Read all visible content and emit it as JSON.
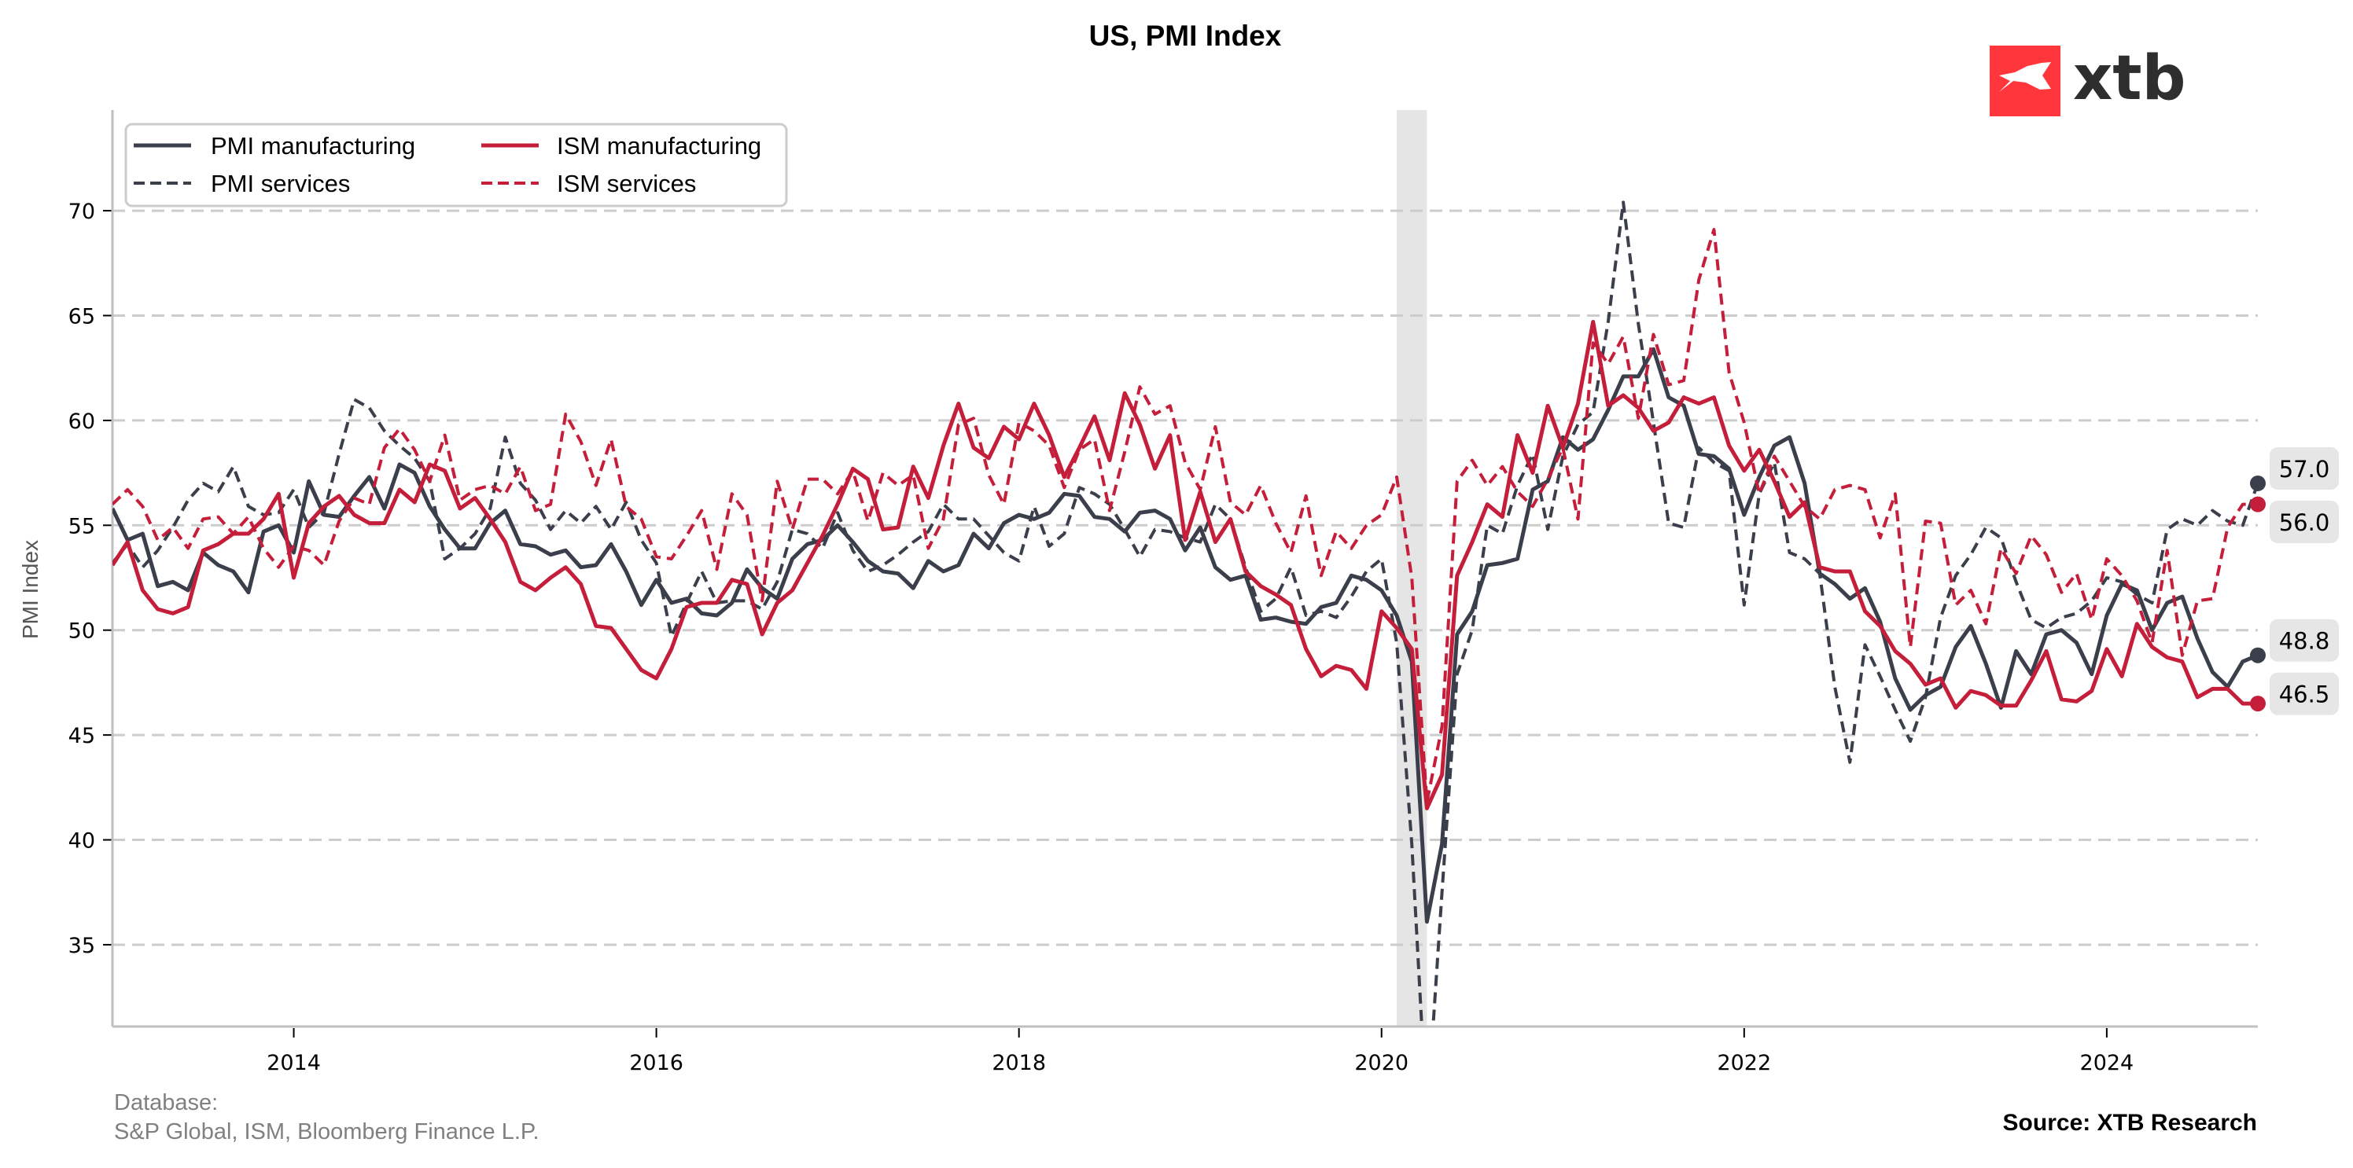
{
  "chart_data": {
    "type": "line",
    "title": "US, PMI Index",
    "xlabel": "",
    "ylabel": "PMI Index",
    "ylim": [
      31.1,
      74.8
    ],
    "xlim": [
      "2013-01",
      "2024-11"
    ],
    "yticks": [
      35,
      40,
      45,
      50,
      55,
      60,
      65,
      70
    ],
    "xticks": [
      "2014",
      "2016",
      "2018",
      "2020",
      "2022",
      "2024"
    ],
    "grid": "horizontal dashed",
    "legend_position": "top-left",
    "start_month": "2013-01",
    "recession_shading": {
      "from": "2020-02",
      "to": "2020-04"
    },
    "series": [
      {
        "name": "PMI manufacturing",
        "color": "#3a3f4b",
        "style": "solid",
        "end_label": "48.8",
        "values": [
          55.8,
          54.3,
          54.6,
          52.1,
          52.3,
          51.9,
          53.7,
          53.1,
          52.8,
          51.8,
          54.7,
          55.0,
          53.7,
          57.1,
          55.5,
          55.4,
          56.4,
          57.3,
          55.8,
          57.9,
          57.5,
          55.9,
          54.8,
          53.9,
          53.9,
          55.1,
          55.7,
          54.1,
          54.0,
          53.6,
          53.8,
          53.0,
          53.1,
          54.1,
          52.8,
          51.2,
          52.4,
          51.3,
          51.5,
          50.8,
          50.7,
          51.3,
          52.9,
          52.0,
          51.5,
          53.4,
          54.1,
          54.3,
          55.0,
          54.2,
          53.3,
          52.8,
          52.7,
          52.0,
          53.3,
          52.8,
          53.1,
          54.6,
          53.9,
          55.1,
          55.5,
          55.3,
          55.6,
          56.5,
          56.4,
          55.4,
          55.3,
          54.7,
          55.6,
          55.7,
          55.3,
          53.8,
          54.9,
          53.0,
          52.4,
          52.6,
          50.5,
          50.6,
          50.4,
          50.3,
          51.1,
          51.3,
          52.6,
          52.4,
          51.9,
          50.7,
          48.5,
          36.1,
          39.8,
          49.8,
          50.9,
          53.1,
          53.2,
          53.4,
          56.7,
          57.1,
          59.2,
          58.6,
          59.1,
          60.5,
          62.1,
          62.1,
          63.4,
          61.1,
          60.7,
          58.4,
          58.3,
          57.7,
          55.5,
          57.3,
          58.8,
          59.2,
          57.0,
          52.7,
          52.2,
          51.5,
          52.0,
          50.4,
          47.7,
          46.2,
          46.9,
          47.3,
          49.2,
          50.2,
          48.4,
          46.3,
          49.0,
          47.9,
          49.8,
          50.0,
          49.4,
          47.9,
          50.7,
          52.2,
          51.9,
          50.0,
          51.3,
          51.6,
          49.6,
          48.0,
          47.3,
          48.5,
          48.8
        ]
      },
      {
        "name": "PMI services",
        "color": "#3a3f4b",
        "style": "dashed",
        "end_label": "57.0",
        "values": [
          53.2,
          54.1,
          53.0,
          53.8,
          54.9,
          56.2,
          57.0,
          56.6,
          57.8,
          55.9,
          55.5,
          55.6,
          56.7,
          54.9,
          55.6,
          58.4,
          61.0,
          60.6,
          59.5,
          58.8,
          58.2,
          57.1,
          53.4,
          53.9,
          54.6,
          55.8,
          59.2,
          57.0,
          56.2,
          54.8,
          55.7,
          55.1,
          55.9,
          54.8,
          56.1,
          54.3,
          53.2,
          49.7,
          51.3,
          52.8,
          51.3,
          51.4,
          51.4,
          51.0,
          52.3,
          54.8,
          54.6,
          53.9,
          55.6,
          53.8,
          52.8,
          53.1,
          53.6,
          54.2,
          54.7,
          56.0,
          55.3,
          55.3,
          54.5,
          53.7,
          53.3,
          55.9,
          54.0,
          54.6,
          56.8,
          56.5,
          56.0,
          54.8,
          53.5,
          54.8,
          54.7,
          54.4,
          54.2,
          56.0,
          55.3,
          53.0,
          50.9,
          51.5,
          53.0,
          50.7,
          50.9,
          50.6,
          51.6,
          52.8,
          53.4,
          49.4,
          39.8,
          26.7,
          37.5,
          47.9,
          50.0,
          55.0,
          54.6,
          56.9,
          58.4,
          54.8,
          58.3,
          59.8,
          60.4,
          64.7,
          70.4,
          64.6,
          59.9,
          55.1,
          54.9,
          58.7,
          58.0,
          57.6,
          51.2,
          56.5,
          58.0,
          53.7,
          53.4,
          52.7,
          47.3,
          43.7,
          49.3,
          47.8,
          46.2,
          44.7,
          46.8,
          50.6,
          52.6,
          53.6,
          54.9,
          54.4,
          52.3,
          50.5,
          50.1,
          50.6,
          50.8,
          51.4,
          52.5,
          52.3,
          51.7,
          51.3,
          54.8,
          55.3,
          55.0,
          55.7,
          55.2,
          55.0,
          57.0
        ]
      },
      {
        "name": "ISM manufacturing",
        "color": "#c41e3a",
        "style": "solid",
        "end_label": "46.5",
        "values": [
          53.1,
          54.2,
          51.9,
          51.0,
          50.8,
          51.1,
          53.8,
          54.1,
          54.6,
          54.6,
          55.3,
          56.5,
          52.5,
          55.1,
          55.9,
          56.4,
          55.5,
          55.1,
          55.1,
          56.7,
          56.1,
          57.9,
          57.6,
          55.8,
          56.3,
          55.3,
          54.2,
          52.3,
          51.9,
          52.5,
          53.0,
          52.2,
          50.2,
          50.1,
          49.1,
          48.1,
          47.7,
          49.1,
          51.1,
          51.3,
          51.3,
          52.4,
          52.2,
          49.8,
          51.3,
          51.9,
          53.2,
          54.5,
          56.0,
          57.7,
          57.2,
          54.8,
          54.9,
          57.8,
          56.3,
          58.8,
          60.8,
          58.7,
          58.2,
          59.7,
          59.1,
          60.8,
          59.3,
          57.3,
          58.7,
          60.2,
          58.1,
          61.3,
          59.8,
          57.7,
          59.3,
          54.3,
          56.6,
          54.2,
          55.3,
          52.8,
          52.1,
          51.7,
          51.2,
          49.1,
          47.8,
          48.3,
          48.1,
          47.2,
          50.9,
          50.1,
          49.1,
          41.5,
          43.1,
          52.6,
          54.2,
          56.0,
          55.4,
          59.3,
          57.5,
          60.7,
          58.7,
          60.8,
          64.7,
          60.7,
          61.2,
          60.6,
          59.5,
          59.9,
          61.1,
          60.8,
          61.1,
          58.8,
          57.6,
          58.6,
          57.1,
          55.4,
          56.1,
          53.0,
          52.8,
          52.8,
          50.9,
          50.2,
          49.0,
          48.4,
          47.4,
          47.7,
          46.3,
          47.1,
          46.9,
          46.4,
          46.4,
          47.6,
          49.0,
          46.7,
          46.6,
          47.1,
          49.1,
          47.8,
          50.3,
          49.2,
          48.7,
          48.5,
          46.8,
          47.2,
          47.2,
          46.5,
          46.5
        ]
      },
      {
        "name": "ISM services",
        "color": "#c41e3a",
        "style": "dashed",
        "end_label": "56.0",
        "values": [
          56.0,
          56.7,
          55.9,
          54.3,
          54.9,
          53.9,
          55.3,
          55.4,
          54.6,
          55.4,
          53.9,
          53.0,
          54.0,
          53.8,
          53.1,
          55.2,
          56.3,
          56.0,
          58.7,
          59.6,
          58.6,
          57.1,
          59.3,
          56.2,
          56.7,
          56.9,
          56.5,
          57.8,
          55.7,
          56.0,
          60.3,
          59.0,
          56.9,
          59.1,
          55.9,
          55.3,
          53.5,
          53.4,
          54.5,
          55.7,
          52.9,
          56.5,
          55.5,
          51.4,
          57.1,
          54.8,
          57.2,
          57.2,
          56.5,
          57.6,
          55.2,
          57.5,
          56.9,
          57.4,
          53.9,
          55.3,
          59.8,
          60.1,
          57.4,
          56.0,
          59.9,
          59.5,
          58.8,
          56.8,
          58.6,
          59.1,
          55.7,
          58.5,
          61.6,
          60.3,
          60.7,
          58.0,
          56.7,
          59.7,
          56.1,
          55.5,
          56.9,
          55.1,
          53.7,
          56.4,
          52.6,
          54.7,
          53.9,
          55.0,
          55.5,
          57.3,
          52.5,
          41.8,
          45.4,
          57.1,
          58.1,
          56.9,
          57.8,
          56.6,
          55.9,
          57.2,
          58.7,
          55.3,
          63.7,
          62.7,
          64.0,
          60.1,
          64.1,
          61.7,
          61.9,
          66.7,
          69.1,
          62.3,
          59.9,
          56.5,
          58.3,
          57.1,
          55.9,
          55.3,
          56.7,
          56.9,
          56.7,
          54.4,
          56.5,
          49.2,
          55.2,
          55.1,
          51.2,
          51.9,
          50.3,
          53.9,
          52.7,
          54.5,
          53.6,
          51.8,
          52.7,
          50.5,
          53.4,
          52.6,
          51.4,
          49.4,
          53.8,
          48.8,
          51.4,
          51.5,
          54.9,
          56.0,
          56.0
        ]
      }
    ]
  },
  "footer": {
    "database_label": "Database:",
    "database_sources": "S&P Global, ISM, Bloomberg Finance L.P.",
    "source": "Source: XTB Research"
  },
  "logo": {
    "text": "xtb",
    "color": "#ff373c"
  }
}
